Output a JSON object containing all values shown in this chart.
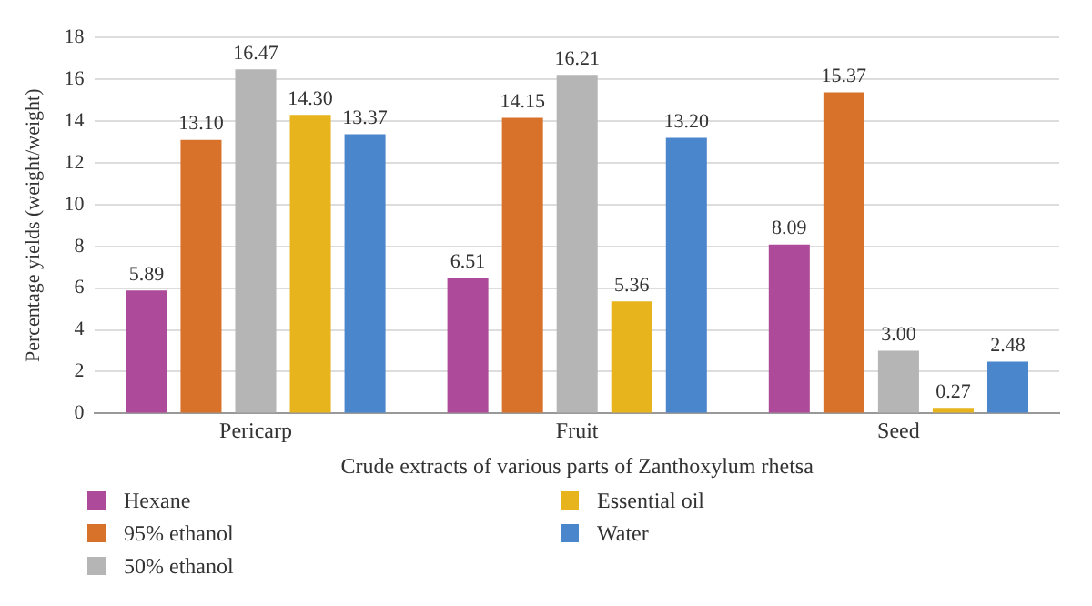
{
  "chart_data": {
    "type": "bar",
    "xlabel": "Crude extracts of various parts of Zanthoxylum rhetsa",
    "ylabel": "Percentage yields (weight/weight)",
    "categories": [
      "Pericarp",
      "Fruit",
      "Seed"
    ],
    "ylim": [
      0,
      18
    ],
    "yticks": [
      0,
      2,
      4,
      6,
      8,
      10,
      12,
      14,
      16,
      18
    ],
    "grid": "y",
    "legend": "bottom",
    "series": [
      {
        "name": "Hexane",
        "color": "#ad4a9a",
        "values": [
          5.89,
          6.51,
          8.09
        ],
        "value_labels": [
          "5.89",
          "6.51",
          "8.09"
        ]
      },
      {
        "name": "95% ethanol",
        "color": "#d8712a",
        "values": [
          13.1,
          14.15,
          15.37
        ],
        "value_labels": [
          "13.10",
          "14.15",
          "15.37"
        ]
      },
      {
        "name": "50% ethanol",
        "color": "#b5b5b5",
        "values": [
          16.47,
          16.21,
          3.0
        ],
        "value_labels": [
          "16.47",
          "16.21",
          "3.00"
        ]
      },
      {
        "name": "Essential oil",
        "color": "#e7b41e",
        "values": [
          14.3,
          5.36,
          0.27
        ],
        "value_labels": [
          "14.30",
          "5.36",
          "0.27"
        ]
      },
      {
        "name": "Water",
        "color": "#4a86cb",
        "values": [
          13.37,
          13.2,
          2.48
        ],
        "value_labels": [
          "13.37",
          "13.20",
          "2.48"
        ]
      }
    ]
  }
}
